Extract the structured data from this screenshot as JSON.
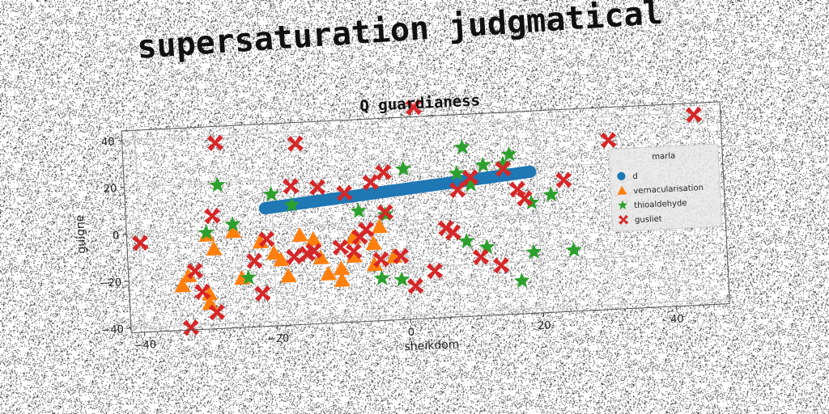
{
  "figure": {
    "suptitle": "supersaturation judgmatical"
  },
  "chart_data": {
    "type": "scatter",
    "title": "Q guardianess",
    "xlabel": "sheikdom",
    "ylabel": "guigne",
    "xlim": [
      -42,
      48
    ],
    "ylim": [
      -42,
      44
    ],
    "xticks": [
      -40,
      -20,
      0,
      20,
      40
    ],
    "yticks": [
      -40,
      -20,
      0,
      20,
      40
    ],
    "grid": true,
    "legend": {
      "title": "marla",
      "position": "right"
    },
    "series": [
      {
        "name": "d",
        "marker": "circle",
        "color": "#1f77b4",
        "x": [
          -21,
          -20.6,
          -20.2,
          -19.8,
          -19.4,
          -19,
          -18.6,
          -18.2,
          -17.8,
          -17.4,
          -17,
          -16.6,
          -16.2,
          -15.8,
          -15.4,
          -15,
          -14.6,
          -14.2,
          -13.8,
          -13.4,
          -13,
          -12.6,
          -12.2,
          -11.8,
          -11.4,
          -11,
          -10.6,
          -10.2,
          -9.8,
          -9.4,
          -9,
          -8.6,
          -8.2,
          -7.8,
          -7.4,
          -7,
          -6.6,
          -6.2,
          -5.8,
          -5.4,
          -5,
          -4.6,
          -4.2,
          -3.8,
          -3.4,
          -3,
          -2.6,
          -2.2,
          -1.8,
          -1.4,
          -1,
          -0.6,
          -0.2,
          0.2,
          0.6,
          1,
          1.4,
          1.8,
          2.2,
          2.6,
          3,
          3.4,
          3.8,
          4.2,
          4.6,
          5,
          5.4,
          5.8,
          6.2,
          6.6,
          7,
          7.4,
          7.8,
          8.2,
          8.6,
          9,
          9.4,
          9.8,
          10.2,
          10.6,
          11,
          11.4,
          11.8,
          12.2,
          12.6,
          13,
          13.4,
          13.8,
          14.2,
          14.6,
          15,
          15.4,
          15.8,
          16.2,
          16.6,
          17,
          17.4,
          17.8,
          18.2,
          18.6,
          19
        ],
        "y": [
          8.2,
          8.3,
          8.4,
          8.5,
          8.6,
          8.7,
          8.8,
          8.9,
          9,
          9.1,
          9.2,
          9.3,
          9.4,
          9.5,
          9.6,
          9.7,
          9.8,
          9.9,
          10,
          10.1,
          10.2,
          10.3,
          10.4,
          10.5,
          10.6,
          10.7,
          10.8,
          10.9,
          11,
          11.1,
          11.2,
          11.3,
          11.4,
          11.5,
          11.6,
          11.7,
          11.8,
          11.9,
          12,
          12.1,
          12.2,
          12.3,
          12.4,
          12.5,
          12.6,
          12.7,
          12.8,
          12.9,
          13,
          13.1,
          13.2,
          13.3,
          13.4,
          13.5,
          13.6,
          13.7,
          13.8,
          13.9,
          14,
          14.1,
          14.2,
          14.3,
          14.4,
          14.5,
          14.6,
          14.7,
          14.8,
          14.9,
          15,
          15.1,
          15.2,
          15.3,
          15.4,
          15.5,
          15.6,
          15.7,
          15.8,
          15.9,
          16,
          16.1,
          16.2,
          16.3,
          16.4,
          16.5,
          16.6,
          16.7,
          16.8,
          16.9,
          17,
          17.1,
          17.2,
          17.3,
          17.4,
          17.5,
          17.6,
          17.7,
          17.8,
          17.9,
          18,
          18.1,
          18.2
        ]
      },
      {
        "name": "vernacularisation",
        "marker": "triangle",
        "color": "#ff7f0e",
        "x": [
          -30,
          -29,
          -26,
          -25,
          -22,
          -19,
          -18,
          -16,
          -14,
          -13,
          -12,
          -10,
          -10,
          -8,
          -5,
          -5,
          -4,
          -2,
          -34,
          -33,
          -30,
          -30,
          -20,
          -8
        ],
        "y": [
          -2,
          -8,
          -1,
          -21,
          -6,
          -14,
          -21,
          -4,
          -6,
          -14,
          -21,
          -19,
          -24,
          -6,
          -9,
          -18,
          -2,
          -15,
          -23,
          -19,
          -27,
          -31,
          -11,
          -14
        ]
      },
      {
        "name": "thioaldehyde",
        "marker": "star",
        "color": "#2ca02c",
        "x": [
          -28,
          -20,
          -26,
          -30,
          -24,
          -17,
          -3,
          -7,
          0,
          8,
          9,
          10,
          12,
          15,
          16,
          19,
          19,
          22,
          25,
          9,
          12,
          17,
          -4,
          -1
        ],
        "y": [
          19,
          14,
          2,
          -1,
          -21,
          9,
          3,
          5,
          22,
          19,
          30,
          14,
          22,
          22,
          26,
          5,
          -16,
          8,
          -16,
          -10,
          -13,
          -28,
          -24,
          -25
        ]
      },
      {
        "name": "gusliet",
        "marker": "x",
        "color": "#d62728",
        "x": [
          -40,
          -32,
          -31,
          -29,
          -28,
          -23,
          -22,
          -21,
          -17,
          -17,
          -16,
          -15,
          -14,
          -13,
          -10,
          -9,
          -8,
          -7,
          -6,
          -5,
          -4,
          -3,
          -3,
          -1,
          1,
          2,
          4,
          6,
          7,
          8,
          10,
          11,
          14,
          15,
          17,
          18,
          24,
          31,
          44,
          -33,
          -29
        ],
        "y": [
          -4,
          -17,
          -26,
          6,
          37,
          -14,
          -28,
          -5,
          -13,
          17,
          35,
          -12,
          -11,
          16,
          -10,
          13,
          -12,
          -6,
          -3,
          17,
          -16,
          21,
          4,
          -15,
          -28,
          48,
          -22,
          -4,
          -6,
          12,
          17,
          -17,
          -21,
          20,
          11,
          7,
          14,
          30,
          39,
          -41,
          -35
        ]
      }
    ]
  }
}
